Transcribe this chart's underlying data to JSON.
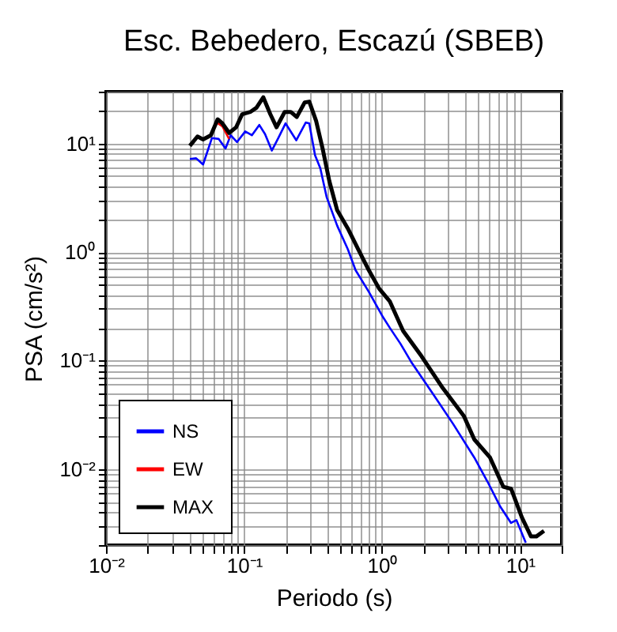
{
  "chart_data": {
    "type": "line",
    "title": "Esc. Bebedero, Escazú (SBEB)",
    "xlabel": "Periodo (s)",
    "ylabel": "PSA (cm/s²)",
    "log": "xy",
    "grid": true,
    "legend": "bottom left",
    "line_style": "solid",
    "marker": "none",
    "xlim": [
      0.01,
      20
    ],
    "ylim": [
      0.002,
      30
    ],
    "xticks": [
      {
        "value": 0.01,
        "label": "10⁻²"
      },
      {
        "value": 0.02,
        "label": null
      },
      {
        "value": 0.03,
        "label": null
      },
      {
        "value": 0.04,
        "label": null
      },
      {
        "value": 0.05,
        "label": null
      },
      {
        "value": 0.06,
        "label": null
      },
      {
        "value": 0.07,
        "label": null
      },
      {
        "value": 0.08,
        "label": null
      },
      {
        "value": 0.09,
        "label": null
      },
      {
        "value": 0.1,
        "label": "10⁻¹"
      },
      {
        "value": 0.2,
        "label": null
      },
      {
        "value": 0.3,
        "label": null
      },
      {
        "value": 0.4,
        "label": null
      },
      {
        "value": 0.5,
        "label": null
      },
      {
        "value": 0.6,
        "label": null
      },
      {
        "value": 0.7,
        "label": null
      },
      {
        "value": 0.8,
        "label": null
      },
      {
        "value": 0.9,
        "label": null
      },
      {
        "value": 1,
        "label": "10⁰"
      },
      {
        "value": 2,
        "label": null
      },
      {
        "value": 3,
        "label": null
      },
      {
        "value": 4,
        "label": null
      },
      {
        "value": 5,
        "label": null
      },
      {
        "value": 6,
        "label": null
      },
      {
        "value": 7,
        "label": null
      },
      {
        "value": 8,
        "label": null
      },
      {
        "value": 9,
        "label": null
      },
      {
        "value": 10,
        "label": "10¹"
      },
      {
        "value": 20,
        "label": null
      }
    ],
    "yticks": [
      {
        "value": 0.002,
        "label": null
      },
      {
        "value": 0.003,
        "label": null
      },
      {
        "value": 0.004,
        "label": null
      },
      {
        "value": 0.005,
        "label": null
      },
      {
        "value": 0.006,
        "label": null
      },
      {
        "value": 0.007,
        "label": null
      },
      {
        "value": 0.008,
        "label": null
      },
      {
        "value": 0.009,
        "label": null
      },
      {
        "value": 0.01,
        "label": "10⁻²"
      },
      {
        "value": 0.02,
        "label": null
      },
      {
        "value": 0.03,
        "label": null
      },
      {
        "value": 0.04,
        "label": null
      },
      {
        "value": 0.05,
        "label": null
      },
      {
        "value": 0.06,
        "label": null
      },
      {
        "value": 0.07,
        "label": null
      },
      {
        "value": 0.08,
        "label": null
      },
      {
        "value": 0.09,
        "label": null
      },
      {
        "value": 0.1,
        "label": "10⁻¹"
      },
      {
        "value": 0.2,
        "label": null
      },
      {
        "value": 0.3,
        "label": null
      },
      {
        "value": 0.4,
        "label": null
      },
      {
        "value": 0.5,
        "label": null
      },
      {
        "value": 0.6,
        "label": null
      },
      {
        "value": 0.7,
        "label": null
      },
      {
        "value": 0.8,
        "label": null
      },
      {
        "value": 0.9,
        "label": null
      },
      {
        "value": 1,
        "label": "10⁰"
      },
      {
        "value": 2,
        "label": null
      },
      {
        "value": 3,
        "label": null
      },
      {
        "value": 4,
        "label": null
      },
      {
        "value": 5,
        "label": null
      },
      {
        "value": 6,
        "label": null
      },
      {
        "value": 7,
        "label": null
      },
      {
        "value": 8,
        "label": null
      },
      {
        "value": 9,
        "label": null
      },
      {
        "value": 10,
        "label": "10¹"
      },
      {
        "value": 20,
        "label": null
      },
      {
        "value": 30,
        "label": null
      }
    ],
    "series": [
      {
        "name": "NS",
        "color": "#0000ff",
        "x": [
          0.0405,
          0.045,
          0.0505,
          0.0585,
          0.0656,
          0.0735,
          0.08,
          0.089,
          0.102,
          0.114,
          0.129,
          0.142,
          0.159,
          0.177,
          0.2,
          0.239,
          0.28,
          0.297,
          0.327,
          0.357,
          0.397,
          0.473,
          0.565,
          0.643,
          0.802,
          1.0,
          1.14,
          1.36,
          1.62,
          2.3,
          3.28,
          4.66,
          5.8,
          7.2,
          8.6,
          9.4,
          11.0
        ],
        "values": [
          7.2,
          7.3,
          6.4,
          11.2,
          11.0,
          9.0,
          11.9,
          10.3,
          12.9,
          11.9,
          14.8,
          12.2,
          8.6,
          11.2,
          15.3,
          10.7,
          15.6,
          15.3,
          7.8,
          5.9,
          3.2,
          1.75,
          1.06,
          0.68,
          0.43,
          0.26,
          0.2,
          0.143,
          0.098,
          0.051,
          0.026,
          0.0128,
          0.0077,
          0.0045,
          0.0032,
          0.0034,
          0.0021
        ]
      },
      {
        "name": "EW",
        "color": "#ff0000",
        "x": [
          0.0644,
          0.0697,
          0.078
        ],
        "values": [
          15.4,
          14.4,
          11.0
        ]
      },
      {
        "name": "MAX",
        "color": "#000000",
        "x": [
          0.0405,
          0.046,
          0.0505,
          0.0575,
          0.0644,
          0.0697,
          0.078,
          0.0877,
          0.097,
          0.111,
          0.123,
          0.138,
          0.155,
          0.172,
          0.197,
          0.218,
          0.241,
          0.275,
          0.297,
          0.333,
          0.373,
          0.415,
          0.473,
          0.565,
          0.672,
          0.802,
          0.953,
          1.14,
          1.42,
          1.93,
          2.75,
          3.91,
          4.66,
          6.06,
          7.55,
          8.61,
          10.3,
          12.0,
          13.1,
          14.9
        ],
        "values": [
          9.5,
          11.6,
          10.9,
          11.9,
          16.7,
          15.3,
          12.5,
          14.1,
          18.6,
          19.5,
          21.3,
          26.6,
          18.6,
          14.1,
          19.5,
          19.5,
          17.5,
          23.8,
          24.3,
          16.1,
          8.7,
          4.5,
          2.43,
          1.65,
          1.06,
          0.68,
          0.46,
          0.35,
          0.188,
          0.11,
          0.056,
          0.031,
          0.0188,
          0.0128,
          0.0069,
          0.0066,
          0.0036,
          0.0024,
          0.0024,
          0.0027
        ]
      }
    ]
  }
}
